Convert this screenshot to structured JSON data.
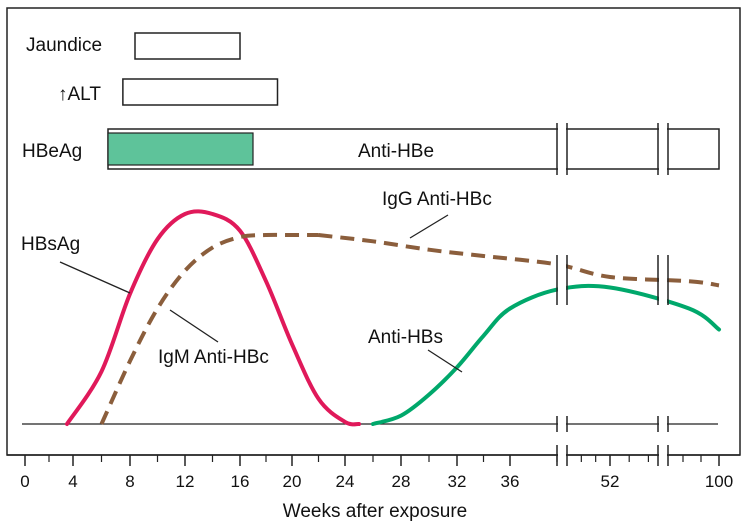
{
  "chart_data": {
    "type": "line",
    "xlabel": "Weeks after exposure",
    "x_ticks": [
      "0",
      "4",
      "8",
      "12",
      "16",
      "20",
      "24",
      "28",
      "32",
      "36",
      "52",
      "100"
    ],
    "colors": {
      "hbsag": "#e0195a",
      "anti_hbc": "#8b5e3c",
      "anti_hbs": "#00a86b",
      "hbeag_fill": "#5ec39a",
      "axis": "#222222"
    },
    "bars": [
      {
        "key": "jaundice",
        "label": "Jaundice",
        "start_week": 8,
        "end_week": 16
      },
      {
        "key": "alt",
        "label": "↑ALT",
        "start_week": 7.5,
        "end_week": 18.5
      }
    ],
    "hbeag_row": {
      "label": "HBeAg",
      "hbeag_start_week": 7.5,
      "hbeag_end_week": 17,
      "anti_label": "Anti-HBe"
    },
    "series": [
      {
        "key": "hbsag",
        "name": "HBsAg",
        "style": "solid",
        "x": [
          3.5,
          6,
          8,
          10,
          12,
          14,
          16,
          18,
          20,
          22,
          24,
          25
        ],
        "y": [
          0,
          0.25,
          0.62,
          0.88,
          1.0,
          1.0,
          0.92,
          0.68,
          0.38,
          0.12,
          0.01,
          0
        ]
      },
      {
        "key": "igm",
        "name": "IgM Anti-HBc",
        "style": "dashed",
        "x": [
          6,
          8,
          10,
          12,
          14,
          16,
          18,
          20,
          22
        ],
        "y": [
          0,
          0.3,
          0.55,
          0.73,
          0.84,
          0.89,
          0.9,
          0.9,
          0.9
        ]
      },
      {
        "key": "igg",
        "name": "IgG Anti-HBc",
        "style": "dashed",
        "x": [
          22,
          26,
          30,
          34,
          38,
          52,
          80,
          100
        ],
        "y": [
          0.9,
          0.87,
          0.83,
          0.8,
          0.76,
          0.7,
          0.68,
          0.66
        ]
      },
      {
        "key": "antihbs",
        "name": "Anti-HBs",
        "style": "solid",
        "x": [
          26,
          28,
          30,
          32,
          34,
          36,
          38,
          52,
          80,
          100
        ],
        "y": [
          0,
          0.04,
          0.14,
          0.27,
          0.42,
          0.55,
          0.64,
          0.65,
          0.55,
          0.45
        ]
      }
    ]
  }
}
